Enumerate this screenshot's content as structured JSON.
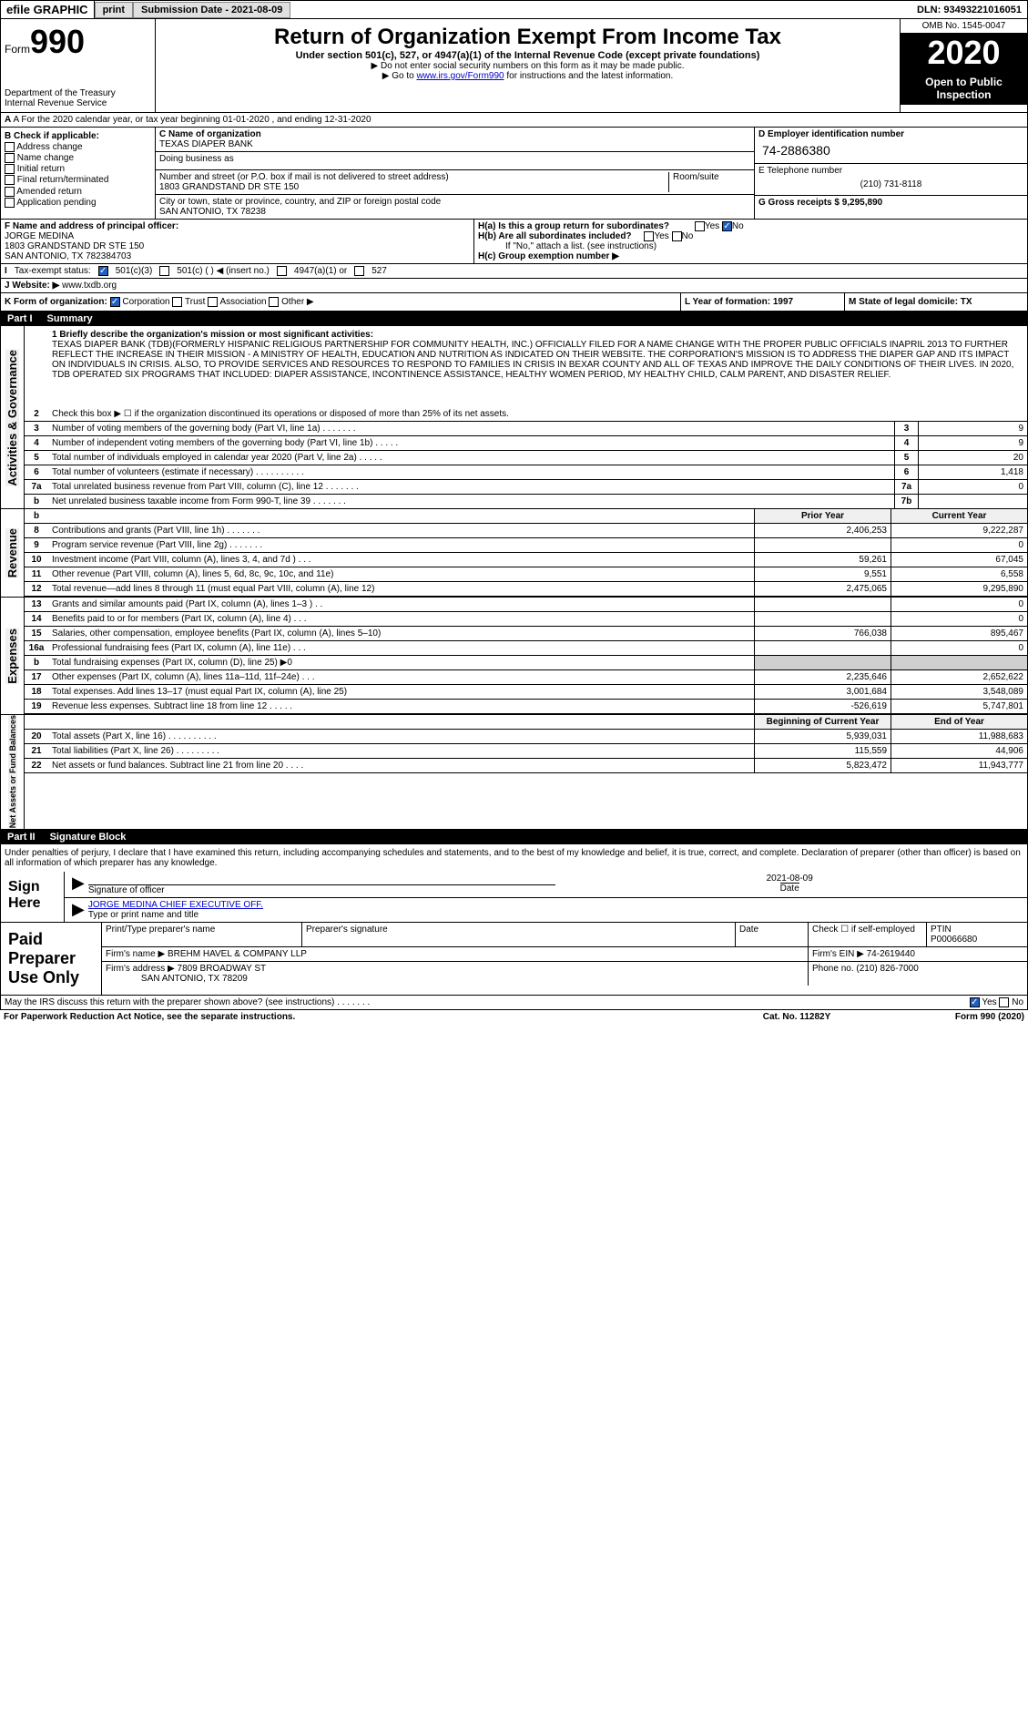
{
  "header": {
    "efile": "efile GRAPHIC",
    "print": "print",
    "subdate_label": "Submission Date - 2021-08-09",
    "dln": "DLN: 93493221016051"
  },
  "formhead": {
    "form": "Form",
    "num": "990",
    "title": "Return of Organization Exempt From Income Tax",
    "sub1": "Under section 501(c), 527, or 4947(a)(1) of the Internal Revenue Code (except private foundations)",
    "sub2": "▶ Do not enter social security numbers on this form as it may be made public.",
    "sub3": "▶ Go to ",
    "sub3link": "www.irs.gov/Form990",
    "sub3after": " for instructions and the latest information.",
    "dept": "Department of the Treasury\nInternal Revenue Service",
    "omb": "OMB No. 1545-0047",
    "year": "2020",
    "open": "Open to Public Inspection"
  },
  "period": "A For the 2020 calendar year, or tax year beginning 01-01-2020    , and ending 12-31-2020",
  "boxB": {
    "label": "B Check if applicable:",
    "opts": [
      "Address change",
      "Name change",
      "Initial return",
      "Final return/terminated",
      "Amended return",
      "Application pending"
    ]
  },
  "boxC": {
    "name_label": "C Name of organization",
    "name": "TEXAS DIAPER BANK",
    "dba_label": "Doing business as",
    "dba": "",
    "addr_label": "Number and street (or P.O. box if mail is not delivered to street address)",
    "addr": "1803 GRANDSTAND DR STE 150",
    "room_label": "Room/suite",
    "city_label": "City or town, state or province, country, and ZIP or foreign postal code",
    "city": "SAN ANTONIO, TX  78238"
  },
  "boxD": {
    "label": "D Employer identification number",
    "ein": "74-2886380"
  },
  "boxE": {
    "label": "E Telephone number",
    "phone": "(210) 731-8118"
  },
  "boxG": {
    "label": "G Gross receipts $ 9,295,890"
  },
  "boxF": {
    "label": "F  Name and address of principal officer:",
    "name": "JORGE MEDINA",
    "addr1": "1803 GRANDSTAND DR STE 150",
    "addr2": "SAN ANTONIO, TX  782384703"
  },
  "boxH": {
    "ha": "H(a)  Is this a group return for subordinates?",
    "hb": "H(b)  Are all subordinates included?",
    "hbnote": "If \"No,\" attach a list. (see instructions)",
    "hc": "H(c)  Group exemption number ▶"
  },
  "taxstatus": {
    "label": "Tax-exempt status:",
    "opts": [
      "501(c)(3)",
      "501(c) (  ) ◀ (insert no.)",
      "4947(a)(1) or",
      "527"
    ]
  },
  "website": {
    "label": "J  Website: ▶",
    "url": "www.txdb.org"
  },
  "rowK": {
    "label": "K Form of organization:",
    "opts": [
      "Corporation",
      "Trust",
      "Association",
      "Other ▶"
    ],
    "L": "L Year of formation: 1997",
    "M": "M State of legal domicile: TX"
  },
  "part1": {
    "label": "Part I",
    "title": "Summary"
  },
  "mission_label": "1   Briefly describe the organization's mission or most significant activities:",
  "mission": "TEXAS DIAPER BANK (TDB)(FORMERLY HISPANIC RELIGIOUS PARTNERSHIP FOR COMMUNITY HEALTH, INC.) OFFICIALLY FILED FOR A NAME CHANGE WITH THE PROPER PUBLIC OFFICIALS INAPRIL 2013 TO FURTHER REFLECT THE INCREASE IN THEIR MISSION - A MINISTRY OF HEALTH, EDUCATION AND NUTRITION AS INDICATED ON THEIR WEBSITE. THE CORPORATION'S MISSION IS TO ADDRESS THE DIAPER GAP AND ITS IMPACT ON INDIVIDUALS IN CRISIS. ALSO, TO PROVIDE SERVICES AND RESOURCES TO RESPOND TO FAMILIES IN CRISIS IN BEXAR COUNTY AND ALL OF TEXAS AND IMPROVE THE DAILY CONDITIONS OF THEIR LIVES. IN 2020, TDB OPERATED SIX PROGRAMS THAT INCLUDED: DIAPER ASSISTANCE, INCONTINENCE ASSISTANCE, HEALTHY WOMEN PERIOD, MY HEALTHY CHILD, CALM PARENT, AND DISASTER RELIEF.",
  "gov_lines": [
    {
      "n": "2",
      "t": "Check this box ▶ ☐  if the organization discontinued its operations or disposed of more than 25% of its net assets."
    },
    {
      "n": "3",
      "t": "Number of voting members of the governing body (Part VI, line 1a)   .    .    .    .    .    .    .",
      "box": "3",
      "v": "9"
    },
    {
      "n": "4",
      "t": "Number of independent voting members of the governing body (Part VI, line 1b)   .    .    .    .    .",
      "box": "4",
      "v": "9"
    },
    {
      "n": "5",
      "t": "Total number of individuals employed in calendar year 2020 (Part V, line 2a)   .    .    .    .    .",
      "box": "5",
      "v": "20"
    },
    {
      "n": "6",
      "t": "Total number of volunteers (estimate if necessary)   .    .    .    .    .    .    .    .    .    .",
      "box": "6",
      "v": "1,418"
    },
    {
      "n": "7a",
      "t": "Total unrelated business revenue from Part VIII, column (C), line 12   .    .    .    .    .    .    .",
      "box": "7a",
      "v": "0"
    },
    {
      "n": "b",
      "t": "Net unrelated business taxable income from Form 990-T, line 39   .    .    .    .    .    .    .",
      "box": "7b",
      "v": ""
    }
  ],
  "rev_header": {
    "prior": "Prior Year",
    "curr": "Current Year"
  },
  "rev_lines": [
    {
      "n": "8",
      "t": "Contributions and grants (Part VIII, line 1h)   .    .    .    .    .    .    .",
      "p": "2,406,253",
      "c": "9,222,287"
    },
    {
      "n": "9",
      "t": "Program service revenue (Part VIII, line 2g)   .    .    .    .    .    .    .",
      "p": "",
      "c": "0"
    },
    {
      "n": "10",
      "t": "Investment income (Part VIII, column (A), lines 3, 4, and 7d )   .    .    .",
      "p": "59,261",
      "c": "67,045"
    },
    {
      "n": "11",
      "t": "Other revenue (Part VIII, column (A), lines 5, 6d, 8c, 9c, 10c, and 11e)",
      "p": "9,551",
      "c": "6,558"
    },
    {
      "n": "12",
      "t": "Total revenue—add lines 8 through 11 (must equal Part VIII, column (A), line 12)",
      "p": "2,475,065",
      "c": "9,295,890"
    }
  ],
  "exp_lines": [
    {
      "n": "13",
      "t": "Grants and similar amounts paid (Part IX, column (A), lines 1–3 )   .    .",
      "p": "",
      "c": "0"
    },
    {
      "n": "14",
      "t": "Benefits paid to or for members (Part IX, column (A), line 4)   .    .    .",
      "p": "",
      "c": "0"
    },
    {
      "n": "15",
      "t": "Salaries, other compensation, employee benefits (Part IX, column (A), lines 5–10)",
      "p": "766,038",
      "c": "895,467"
    },
    {
      "n": "16a",
      "t": "Professional fundraising fees (Part IX, column (A), line 11e)   .    .    .",
      "p": "",
      "c": "0"
    },
    {
      "n": "b",
      "t": "Total fundraising expenses (Part IX, column (D), line 25) ▶0",
      "p": "shaded",
      "c": "shaded"
    },
    {
      "n": "17",
      "t": "Other expenses (Part IX, column (A), lines 11a–11d, 11f–24e)   .    .    .",
      "p": "2,235,646",
      "c": "2,652,622"
    },
    {
      "n": "18",
      "t": "Total expenses. Add lines 13–17 (must equal Part IX, column (A), line 25)",
      "p": "3,001,684",
      "c": "3,548,089"
    },
    {
      "n": "19",
      "t": "Revenue less expenses. Subtract line 18 from line 12   .    .    .    .    .",
      "p": "-526,619",
      "c": "5,747,801"
    }
  ],
  "net_header": {
    "prior": "Beginning of Current Year",
    "curr": "End of Year"
  },
  "net_lines": [
    {
      "n": "20",
      "t": "Total assets (Part X, line 16)   .    .    .    .    .    .    .    .    .    .",
      "p": "5,939,031",
      "c": "11,988,683"
    },
    {
      "n": "21",
      "t": "Total liabilities (Part X, line 26)   .    .    .    .    .    .    .    .    .",
      "p": "115,559",
      "c": "44,906"
    },
    {
      "n": "22",
      "t": "Net assets or fund balances. Subtract line 21 from line 20   .    .    .    .",
      "p": "5,823,472",
      "c": "11,943,777"
    }
  ],
  "part2": {
    "label": "Part II",
    "title": "Signature Block"
  },
  "sig": {
    "penalty": "Under penalties of perjury, I declare that I have examined this return, including accompanying schedules and statements, and to the best of my knowledge and belief, it is true, correct, and complete. Declaration of preparer (other than officer) is based on all information of which preparer has any knowledge.",
    "sign": "Sign Here",
    "sigoff": "Signature of officer",
    "date": "2021-08-09",
    "datelbl": "Date",
    "name": "JORGE MEDINA  CHIEF EXECUTIVE OFF.",
    "namelbl": "Type or print name and title"
  },
  "prep": {
    "label": "Paid Preparer Use Only",
    "h1": "Print/Type preparer's name",
    "h2": "Preparer's signature",
    "h3": "Date",
    "h4": "Check ☐  if self-employed",
    "h5": "PTIN",
    "ptin": "P00066680",
    "firm_label": "Firm's name    ▶",
    "firm": "BREHM HAVEL & COMPANY LLP",
    "ein_label": "Firm's EIN ▶",
    "ein": "74-2619440",
    "addr_label": "Firm's address ▶",
    "addr1": "7809 BROADWAY ST",
    "addr2": "SAN ANTONIO, TX  78209",
    "phone_label": "Phone no.",
    "phone": "(210) 826-7000"
  },
  "discuss": "May the IRS discuss this return with the preparer shown above? (see instructions)   .    .    .    .    .    .    .",
  "footer": {
    "pra": "For Paperwork Reduction Act Notice, see the separate instructions.",
    "cat": "Cat. No. 11282Y",
    "form": "Form 990 (2020)"
  },
  "vtabs": {
    "gov": "Activities & Governance",
    "rev": "Revenue",
    "exp": "Expenses",
    "net": "Net Assets or Fund Balances"
  }
}
